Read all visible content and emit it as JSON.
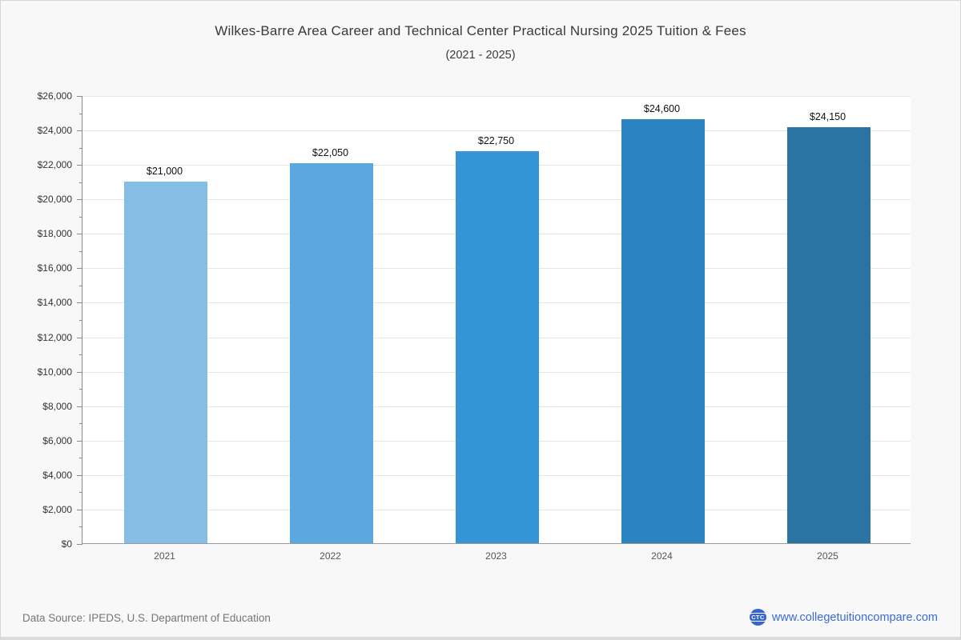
{
  "chart_data": {
    "type": "bar",
    "title": "Wilkes-Barre Area Career and Technical Center Practical Nursing 2025 Tuition & Fees",
    "subtitle": "(2021 - 2025)",
    "categories": [
      "2021",
      "2022",
      "2023",
      "2024",
      "2025"
    ],
    "values": [
      21000,
      22050,
      22750,
      24600,
      24150
    ],
    "value_labels": [
      "$21,000",
      "$22,050",
      "$22,750",
      "$24,600",
      "$24,150"
    ],
    "bar_colors": [
      "#85BDE7",
      "#5BA8DE",
      "#3494D6",
      "#2B84BF",
      "#2B73A3"
    ],
    "xlabel": "",
    "ylabel": "",
    "ylim": [
      0,
      26000
    ],
    "y_major_step": 2000,
    "y_minor_step": 1000,
    "y_tick_labels": [
      "$0",
      "$2,000",
      "$4,000",
      "$6,000",
      "$8,000",
      "$10,000",
      "$12,000",
      "$14,000",
      "$16,000",
      "$18,000",
      "$20,000",
      "$22,000",
      "$24,000",
      "$26,000"
    ],
    "grid": "horizontal-major",
    "legend": "none"
  },
  "footer": {
    "data_source": "Data Source: IPEDS, U.S. Department of Education",
    "logo_text": "CTC",
    "site_label": "www.collegetuitioncompare.com"
  }
}
